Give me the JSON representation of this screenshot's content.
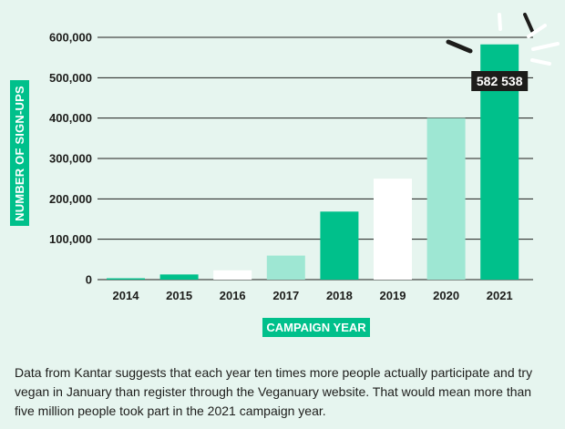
{
  "colors": {
    "background": "#e6f5ef",
    "dark_green": "#00c08b",
    "light_green": "#9ee7d3",
    "white": "#ffffff",
    "axis": "#1d1d1b",
    "callout_bg": "#1d1d1b"
  },
  "chart_data": {
    "type": "bar",
    "categories": [
      "2014",
      "2015",
      "2016",
      "2017",
      "2018",
      "2019",
      "2020",
      "2021"
    ],
    "values": [
      3300,
      12800,
      23000,
      59500,
      168500,
      250000,
      400000,
      582538
    ],
    "bar_colors": [
      "dark_green",
      "dark_green",
      "white",
      "light_green",
      "dark_green",
      "white",
      "light_green",
      "dark_green"
    ],
    "xlabel": "CAMPAIGN YEAR",
    "ylabel": "NUMBER OF SIGN-UPS",
    "ylim": [
      0,
      600000
    ],
    "yticks": [
      0,
      100000,
      200000,
      300000,
      400000,
      500000,
      600000
    ],
    "ytick_labels": [
      "0",
      "100,000",
      "200,000",
      "300,000",
      "400,000",
      "500,000",
      "600,000"
    ],
    "grid": true,
    "annotation": {
      "category": "2021",
      "text": "582 538"
    }
  },
  "caption": "Data from Kantar suggests that each year ten times more people actually participate and try vegan in January than register through the Veganuary website. That would mean more than five million people took part in the 2021 campaign year."
}
